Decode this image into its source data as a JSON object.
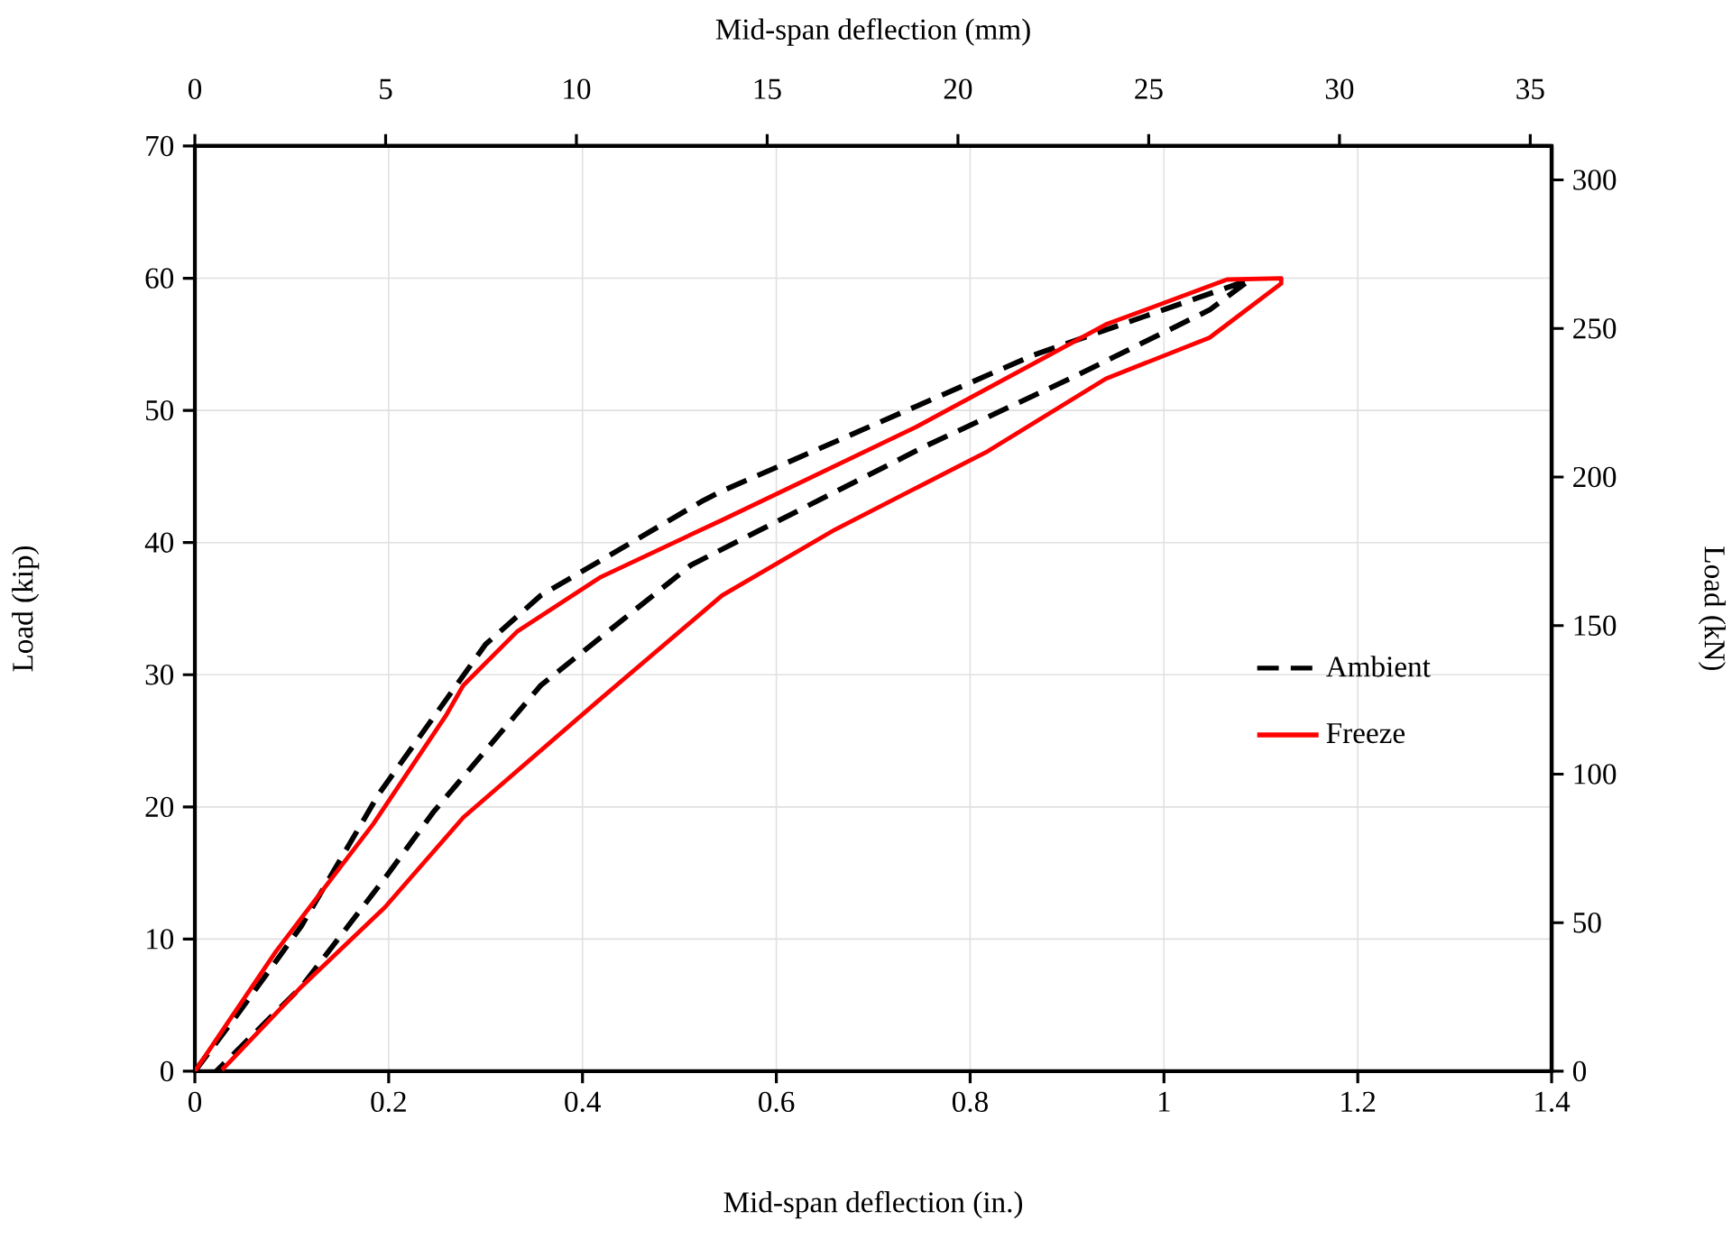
{
  "chart_data": {
    "type": "line",
    "xlabel": "Mid-span deflection (in.)",
    "ylabel": "Load (kip)",
    "x2label": "Mid-span deflection (mm)",
    "y2label": "Load (kN)",
    "xlim": [
      0,
      1.4
    ],
    "xticks": [
      0,
      0.2,
      0.4,
      0.6,
      0.8,
      1,
      1.2,
      1.4
    ],
    "ylim": [
      0,
      70
    ],
    "yticks": [
      0,
      10,
      20,
      30,
      40,
      50,
      60,
      70
    ],
    "x2lim": [
      0,
      35.56
    ],
    "x2ticks": [
      0,
      5,
      10,
      15,
      20,
      25,
      30,
      35
    ],
    "y2lim": [
      0,
      311.4
    ],
    "y2ticks": [
      0,
      50,
      100,
      150,
      200,
      250,
      300
    ],
    "grid": true,
    "legend": "right",
    "marker": "none",
    "series": [
      {
        "name": "Ambient",
        "color": "#000000",
        "line_style": "dashed",
        "x": [
          0,
          0.047,
          0.11,
          0.19,
          0.3,
          0.357,
          0.42,
          0.525,
          0.544,
          0.866,
          1.089,
          1.047,
          0.903,
          0.754,
          0.512,
          0.357,
          0.246,
          0.196,
          0.11,
          0.022
        ],
        "values": [
          0,
          4.6,
          11,
          21,
          32.3,
          36,
          38.7,
          43.2,
          43.9,
          54.2,
          59.9,
          57.6,
          52.4,
          47.3,
          38.3,
          29.2,
          19.6,
          14.6,
          6.4,
          0
        ]
      },
      {
        "name": "Freeze",
        "color": "#ff0000",
        "line_style": "solid",
        "x": [
          0,
          0.084,
          0.184,
          0.259,
          0.277,
          0.333,
          0.419,
          0.506,
          0.544,
          0.743,
          0.94,
          1.065,
          1.121,
          1.121,
          1.047,
          0.94,
          0.818,
          0.661,
          0.544,
          0.419,
          0.277,
          0.196,
          0.11,
          0.028
        ],
        "values": [
          0,
          9.1,
          18.7,
          26.9,
          29.2,
          33.3,
          37.4,
          40.4,
          41.7,
          48.7,
          56.5,
          59.9,
          60,
          59.6,
          55.5,
          52.4,
          46.9,
          41,
          36,
          28.2,
          19.2,
          12.4,
          6.4,
          0.1
        ]
      }
    ]
  }
}
